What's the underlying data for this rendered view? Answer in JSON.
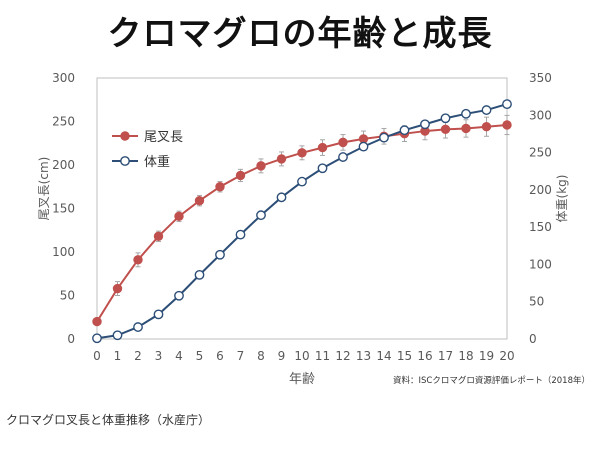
{
  "page": {
    "title": "クロマグロの年齢と成長",
    "caption": "クロマグロ叉長と体重推移（水産庁）"
  },
  "chart_data": {
    "type": "line",
    "x": [
      0,
      1,
      2,
      3,
      4,
      5,
      6,
      7,
      8,
      9,
      10,
      11,
      12,
      13,
      14,
      15,
      16,
      17,
      18,
      19,
      20
    ],
    "xlabel": "年齢",
    "ylabel_left": "尾叉長(cm)",
    "ylabel_right": "体重(kg)",
    "ylim_left": [
      0,
      300
    ],
    "ylim_right": [
      0,
      350
    ],
    "yticks_left": [
      0,
      50,
      100,
      150,
      200,
      250,
      300
    ],
    "yticks_right": [
      0,
      50,
      100,
      150,
      200,
      250,
      300,
      350
    ],
    "xlim": [
      0,
      20
    ],
    "grid": false,
    "legend_position": "top-left",
    "source": "資料：ISCクロマグロ資源評価レポート（2018年）",
    "series": [
      {
        "name": "尾叉長",
        "axis": "left",
        "color": "#c0504d",
        "marker": "filled-circle",
        "error_bars": true,
        "error": [
          2,
          8,
          8,
          6,
          6,
          6,
          6,
          7,
          8,
          8,
          8,
          9,
          9,
          9,
          9,
          9,
          10,
          10,
          10,
          11,
          11
        ],
        "values": [
          20,
          58,
          91,
          118,
          141,
          159,
          175,
          188,
          199,
          207,
          214,
          220,
          226,
          230,
          233,
          236,
          239,
          241,
          242,
          244,
          246
        ]
      },
      {
        "name": "体重",
        "axis": "right",
        "color": "#2c4e77",
        "marker": "open-circle",
        "error_bars": false,
        "values": [
          1,
          5,
          16,
          33,
          58,
          86,
          113,
          140,
          166,
          190,
          211,
          229,
          244,
          258,
          270,
          280,
          288,
          296,
          302,
          307,
          315
        ]
      }
    ]
  }
}
